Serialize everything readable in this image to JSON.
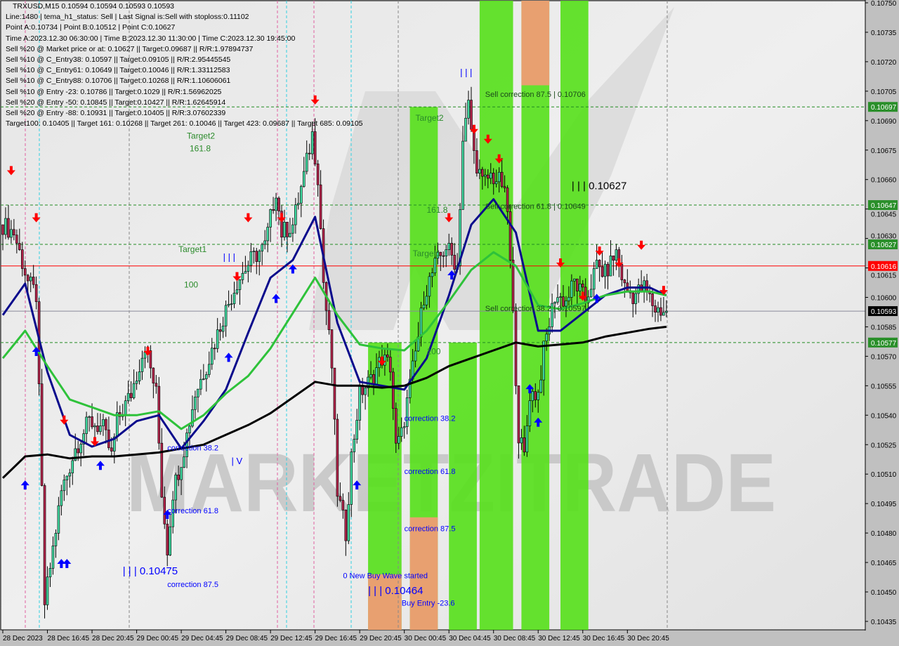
{
  "info": {
    "title": "TRXUSD,M15  0.10594 0.10594 0.10593 0.10593",
    "lines": [
      "Line:1480 | tema_h1_status: Sell | Last Signal is:Sell with stoploss:0.11102",
      "Point A:0.10734 | Point B:0.10512 | Point C:0.10627",
      "Time A:2023.12.30 06:30:00 | Time B:2023.12.30 11:30:00 | Time C:2023.12.30 19:45:00",
      "Sell %20 @ Market price or at: 0.10627 || Target:0.09687 || R/R:1.97894737",
      "Sell %10 @ C_Entry38: 0.10597 || Target:0.09105 || R/R:2.95445545",
      "Sell %10 @ C_Entry61: 0.10649 || Target:0.10046 || R/R:1.33112583",
      "Sell %10 @ C_Entry88: 0.10706 || Target:0.10268 || R/R:1.10606061",
      "Sell %10 @ Entry -23: 0.10786 || Target:0.1029 || R/R:1.56962025",
      "Sell %20 @ Entry -50: 0.10845 || Target:0.10427 || R/R:1.62645914",
      "Sell %20 @ Entry -88: 0.10931 || Target:0.10405 || R/R:3.07602339",
      "Target100: 0.10405 || Target 161: 0.10268 || Target 261: 0.10046 || Target 423: 0.09687 || Target 685: 0.09105"
    ]
  },
  "watermark": "MARKETZITRADE",
  "colors": {
    "bull": "#3fd9a0",
    "bear": "#b3234a",
    "fast_ma": "#0a0a8c",
    "mid_ma": "#2ec23a",
    "slow_ma": "#000000",
    "zone_green": "#55e01a",
    "zone_orange": "#e8a070",
    "level_green": "#228b22",
    "level_red": "#ff0000",
    "current": "#000000",
    "label_blue": "#0000ff"
  },
  "chart_data": {
    "type": "candlestick",
    "symbol": "TRXUSD",
    "timeframe": "M15",
    "ylim": [
      0.10428,
      0.10752
    ],
    "y_ticks": [
      "0.10750",
      "0.10735",
      "0.10720",
      "0.10705",
      "0.10690",
      "0.10675",
      "0.10660",
      "0.10645",
      "0.10630",
      "0.10615",
      "0.10600",
      "0.10585",
      "0.10570",
      "0.10555",
      "0.10540",
      "0.10525",
      "0.10510",
      "0.10495",
      "0.10480",
      "0.10465",
      "0.10450",
      "0.10435"
    ],
    "x_ticks": [
      {
        "t": "2023.12.28 12:45",
        "label": "28 Dec 2023"
      },
      {
        "t": "2023.12.28 16:45",
        "label": "28 Dec 16:45"
      },
      {
        "t": "2023.12.28 20:45",
        "label": "28 Dec 20:45"
      },
      {
        "t": "2023.12.29 00:45",
        "label": "29 Dec 00:45"
      },
      {
        "t": "2023.12.29 04:45",
        "label": "29 Dec 04:45"
      },
      {
        "t": "2023.12.29 08:45",
        "label": "29 Dec 08:45"
      },
      {
        "t": "2023.12.29 12:45",
        "label": "29 Dec 12:45"
      },
      {
        "t": "2023.12.29 16:45",
        "label": "29 Dec 16:45"
      },
      {
        "t": "2023.12.29 20:45",
        "label": "29 Dec 20:45"
      },
      {
        "t": "2023.12.30 00:45",
        "label": "30 Dec 00:45"
      },
      {
        "t": "2023.12.30 04:45",
        "label": "30 Dec 04:45"
      },
      {
        "t": "2023.12.30 08:45",
        "label": "30 Dec 08:45"
      },
      {
        "t": "2023.12.30 12:45",
        "label": "30 Dec 12:45"
      },
      {
        "t": "2023.12.30 16:45",
        "label": "30 Dec 16:45"
      },
      {
        "t": "2023.12.30 20:45",
        "label": "30 Dec 20:45"
      }
    ],
    "price_path": [
      [
        "2023.12.28 12:45",
        0.10637
      ],
      [
        "2023.12.28 13:45",
        0.10633
      ],
      [
        "2023.12.28 15:00",
        0.10608
      ],
      [
        "2023.12.28 15:45",
        0.10601
      ],
      [
        "2023.12.28 16:15",
        0.10501
      ],
      [
        "2023.12.28 16:30",
        0.10444
      ],
      [
        "2023.12.28 17:15",
        0.10472
      ],
      [
        "2023.12.28 18:00",
        0.10501
      ],
      [
        "2023.12.28 19:15",
        0.10523
      ],
      [
        "2023.12.28 20:30",
        0.10537
      ],
      [
        "2023.12.28 21:45",
        0.10533
      ],
      [
        "2023.12.28 22:30",
        0.10519
      ],
      [
        "2023.12.28 23:00",
        0.10537
      ],
      [
        "2023.12.29 00:15",
        0.10551
      ],
      [
        "2023.12.29 01:30",
        0.10576
      ],
      [
        "2023.12.29 02:30",
        0.10551
      ],
      [
        "2023.12.29 03:00",
        0.10501
      ],
      [
        "2023.12.29 03:30",
        0.10472
      ],
      [
        "2023.12.29 04:00",
        0.10501
      ],
      [
        "2023.12.29 05:00",
        0.10523
      ],
      [
        "2023.12.29 06:00",
        0.10551
      ],
      [
        "2023.12.29 07:15",
        0.10569
      ],
      [
        "2023.12.29 08:30",
        0.1059
      ],
      [
        "2023.12.29 09:45",
        0.10608
      ],
      [
        "2023.12.29 11:00",
        0.10619
      ],
      [
        "2023.12.29 12:15",
        0.10626
      ],
      [
        "2023.12.29 13:15",
        0.10655
      ],
      [
        "2023.12.29 13:45",
        0.10633
      ],
      [
        "2023.12.29 14:45",
        0.10637
      ],
      [
        "2023.12.29 15:45",
        0.10662
      ],
      [
        "2023.12.29 16:30",
        0.10683
      ],
      [
        "2023.12.29 17:00",
        0.10662
      ],
      [
        "2023.12.29 17:30",
        0.10608
      ],
      [
        "2023.12.29 18:15",
        0.10565
      ],
      [
        "2023.12.29 18:45",
        0.10501
      ],
      [
        "2023.12.29 19:30",
        0.1048
      ],
      [
        "2023.12.29 20:00",
        0.10519
      ],
      [
        "2023.12.29 20:45",
        0.10551
      ],
      [
        "2023.12.29 21:45",
        0.10558
      ],
      [
        "2023.12.29 22:45",
        0.10569
      ],
      [
        "2023.12.29 23:30",
        0.10565
      ],
      [
        "2023.12.30 00:00",
        0.10523
      ],
      [
        "2023.12.30 00:30",
        0.1053
      ],
      [
        "2023.12.30 01:15",
        0.10555
      ],
      [
        "2023.12.30 02:00",
        0.1058
      ],
      [
        "2023.12.30 02:30",
        0.10601
      ],
      [
        "2023.12.30 03:30",
        0.10616
      ],
      [
        "2023.12.30 04:30",
        0.10626
      ],
      [
        "2023.12.30 05:30",
        0.10616
      ],
      [
        "2023.12.30 06:00",
        0.1068
      ],
      [
        "2023.12.30 06:30",
        0.10698
      ],
      [
        "2023.12.30 07:00",
        0.10673
      ],
      [
        "2023.12.30 07:45",
        0.10658
      ],
      [
        "2023.12.30 08:30",
        0.10662
      ],
      [
        "2023.12.30 09:30",
        0.10658
      ],
      [
        "2023.12.30 10:00",
        0.10644
      ],
      [
        "2023.12.30 10:30",
        0.1059
      ],
      [
        "2023.12.30 11:00",
        0.1053
      ],
      [
        "2023.12.30 11:30",
        0.10519
      ],
      [
        "2023.12.30 12:00",
        0.10551
      ],
      [
        "2023.12.30 12:45",
        0.10551
      ],
      [
        "2023.12.30 13:15",
        0.10573
      ],
      [
        "2023.12.30 14:15",
        0.10601
      ],
      [
        "2023.12.30 15:15",
        0.10598
      ],
      [
        "2023.12.30 16:00",
        0.10608
      ],
      [
        "2023.12.30 17:00",
        0.10598
      ],
      [
        "2023.12.30 18:00",
        0.10616
      ],
      [
        "2023.12.30 18:45",
        0.10612
      ],
      [
        "2023.12.30 19:45",
        0.10623
      ],
      [
        "2023.12.30 20:30",
        0.10605
      ],
      [
        "2023.12.30 21:15",
        0.10601
      ],
      [
        "2023.12.30 22:15",
        0.10605
      ],
      [
        "2023.12.30 23:15",
        0.10594
      ],
      [
        "2023.12.31 00:15",
        0.10593
      ]
    ],
    "ma_times": [
      "2023.12.28 12:45",
      "2023.12.28 14:45",
      "2023.12.28 16:45",
      "2023.12.28 18:45",
      "2023.12.28 20:45",
      "2023.12.28 22:45",
      "2023.12.29 00:45",
      "2023.12.29 02:45",
      "2023.12.29 04:45",
      "2023.12.29 06:45",
      "2023.12.29 08:45",
      "2023.12.29 10:45",
      "2023.12.29 12:45",
      "2023.12.29 14:45",
      "2023.12.29 16:45",
      "2023.12.29 18:45",
      "2023.12.29 20:45",
      "2023.12.29 22:45",
      "2023.12.30 00:45",
      "2023.12.30 02:45",
      "2023.12.30 04:45",
      "2023.12.30 06:45",
      "2023.12.30 08:45",
      "2023.12.30 10:45",
      "2023.12.30 12:45",
      "2023.12.30 14:45",
      "2023.12.30 16:45",
      "2023.12.30 18:45",
      "2023.12.30 20:45",
      "2023.12.30 22:45",
      "2023.12.31 00:15"
    ],
    "series": [
      {
        "key": "fast_ma",
        "values": [
          0.10591,
          0.10607,
          0.10562,
          0.1053,
          0.10524,
          0.10528,
          0.10537,
          0.1054,
          0.10523,
          0.10537,
          0.10553,
          0.10582,
          0.1061,
          0.10619,
          0.10641,
          0.10587,
          0.10557,
          0.10555,
          0.10553,
          0.10569,
          0.10601,
          0.10637,
          0.1065,
          0.10633,
          0.10583,
          0.10583,
          0.10592,
          0.10601,
          0.10605,
          0.10605,
          0.10601
        ]
      },
      {
        "key": "mid_ma",
        "values": [
          0.10569,
          0.10583,
          0.10565,
          0.10548,
          0.10544,
          0.1054,
          0.1054,
          0.10542,
          0.10533,
          0.1054,
          0.10551,
          0.1056,
          0.10574,
          0.10592,
          0.1061,
          0.10591,
          0.10576,
          0.10574,
          0.10573,
          0.10583,
          0.10598,
          0.10614,
          0.10623,
          0.10616,
          0.10596,
          0.10594,
          0.10597,
          0.10601,
          0.10603,
          0.10603,
          0.10601
        ]
      },
      {
        "key": "slow_ma",
        "values": [
          0.10508,
          0.10519,
          0.1052,
          0.10518,
          0.10519,
          0.10519,
          0.1052,
          0.10521,
          0.10523,
          0.10525,
          0.1053,
          0.10535,
          0.10541,
          0.10549,
          0.10557,
          0.10555,
          0.10555,
          0.10554,
          0.10555,
          0.10559,
          0.10565,
          0.10569,
          0.10573,
          0.10577,
          0.10575,
          0.10576,
          0.10577,
          0.1058,
          0.10582,
          0.10584,
          0.10585
        ]
      }
    ],
    "levels": [
      {
        "price": 0.10697,
        "label": "0.10697",
        "style": "dashed",
        "color": "#228b22"
      },
      {
        "price": 0.10647,
        "label": "0.10647",
        "style": "dashed",
        "color": "#228b22"
      },
      {
        "price": 0.10627,
        "label": "0.10627",
        "style": "dashed",
        "color": "#228b22"
      },
      {
        "price": 0.10616,
        "label": "0.10616",
        "style": "solid",
        "color": "#ff0000"
      },
      {
        "price": 0.10593,
        "label": "0.10593",
        "style": "solid",
        "color": "#000000"
      },
      {
        "price": 0.10577,
        "label": "0.10577",
        "style": "dashed",
        "color": "#228b22"
      }
    ],
    "zones": [
      {
        "from": "2023.12.29 21:30",
        "to": "2023.12.30 00:30",
        "top": 0.10577,
        "bottom": 0.10428,
        "color": "green",
        "orange_top": 0.10459
      },
      {
        "from": "2023.12.30 01:15",
        "to": "2023.12.30 03:45",
        "top": 0.10697,
        "bottom": 0.10428,
        "color": "green",
        "orange_top": 0.10488
      },
      {
        "from": "2023.12.30 04:45",
        "to": "2023.12.30 07:15",
        "top": 0.10577,
        "bottom": 0.10428,
        "color": "green"
      },
      {
        "from": "2023.12.30 07:30",
        "to": "2023.12.30 10:30",
        "top": 0.10752,
        "bottom": 0.10428,
        "color": "green"
      },
      {
        "from": "2023.12.30 11:15",
        "to": "2023.12.30 13:45",
        "top": 0.10752,
        "bottom": 0.10428,
        "color": "green",
        "orange_band": [
          0.10752,
          0.10708
        ]
      },
      {
        "from": "2023.12.30 14:45",
        "to": "2023.12.30 17:15",
        "top": 0.10752,
        "bottom": 0.10428,
        "color": "green"
      }
    ],
    "annotations": [
      {
        "text": "Target2",
        "t": "2023.12.30 01:45",
        "p": 0.1069,
        "color": "#2a8a2a",
        "size": 12
      },
      {
        "text": "Target2",
        "t": "2023.12.29 05:15",
        "p": 0.10718,
        "color": "#2a8a2a",
        "size": 12
      },
      {
        "text": "161.8",
        "t": "2023.12.29 05:30",
        "p": 0.10693,
        "color": "#2a8a2a",
        "size": 12
      },
      {
        "text": "161.8",
        "t": "2023.12.30 02:45",
        "p": 0.10643,
        "color": "#2a8a2a",
        "size": 12
      },
      {
        "text": "Target1",
        "t": "2023.12.29 04:30",
        "p": 0.10623,
        "color": "#2a8a2a",
        "size": 12
      },
      {
        "text": "Target1",
        "t": "2023.12.30 01:30",
        "p": 0.10621,
        "color": "#2a8a2a",
        "size": 12
      },
      {
        "text": "100",
        "t": "2023.12.29 05:00",
        "p": 0.10605,
        "color": "#2a8a2a",
        "size": 12
      },
      {
        "text": "100",
        "t": "2023.12.30 02:45",
        "p": 0.10571,
        "color": "#2a8a2a",
        "size": 12
      },
      {
        "text": "Sell correction 87.5 | 0.10706",
        "t": "2023.12.30 08:00",
        "p": 0.10702,
        "color": "#1a4a1a",
        "size": 11
      },
      {
        "text": "Sell correction 61.8 | 0.10649",
        "t": "2023.12.30 08:00",
        "p": 0.10645,
        "color": "#1a4a1a",
        "size": 11
      },
      {
        "text": "Sell correction 38.2 | 0.10597",
        "t": "2023.12.30 08:00",
        "p": 0.10593,
        "color": "#1a4a1a",
        "size": 11
      },
      {
        "text": "| | | 0.10627",
        "t": "2023.12.30 15:45",
        "p": 0.10655,
        "color": "#000000",
        "size": 15
      },
      {
        "text": "| | | 0.10475",
        "t": "2023.12.28 23:30",
        "p": 0.10459,
        "color": "#0000ff",
        "size": 15
      },
      {
        "text": "| | | 0.10464",
        "t": "2023.12.29 21:30",
        "p": 0.10449,
        "color": "#0000ff",
        "size": 15
      },
      {
        "text": "| | |",
        "t": "2023.12.29 08:30",
        "p": 0.10619,
        "color": "#0000ff",
        "size": 13
      },
      {
        "text": "| | |",
        "t": "2023.12.30 05:45",
        "p": 0.10713,
        "color": "#0000ff",
        "size": 13
      },
      {
        "text": "| V",
        "t": "2023.12.29 09:15",
        "p": 0.10515,
        "color": "#0000ff",
        "size": 13
      },
      {
        "text": "correction 38.2",
        "t": "2023.12.29 03:30",
        "p": 0.10522,
        "color": "#0000ff",
        "size": 11
      },
      {
        "text": "correction 61.8",
        "t": "2023.12.29 03:30",
        "p": 0.1049,
        "color": "#0000ff",
        "size": 11
      },
      {
        "text": "correction 87.5",
        "t": "2023.12.29 03:30",
        "p": 0.10454,
        "color": "#0000ff",
        "size": 11
      },
      {
        "text": "correction 38.2",
        "t": "2023.12.30 00:45",
        "p": 0.10537,
        "color": "#0000ff",
        "size": 11
      },
      {
        "text": "correction 61.8",
        "t": "2023.12.30 00:45",
        "p": 0.1051,
        "color": "#0000ff",
        "size": 11
      },
      {
        "text": "correction 87.5",
        "t": "2023.12.30 00:45",
        "p": 0.10481,
        "color": "#0000ff",
        "size": 11
      },
      {
        "text": "0 New Buy Wave started",
        "t": "2023.12.29 19:15",
        "p": 0.10457,
        "color": "#0000ff",
        "size": 11
      },
      {
        "text": "Buy Entry -23.6",
        "t": "2023.12.30 00:30",
        "p": 0.10443,
        "color": "#0000ff",
        "size": 11
      }
    ],
    "sell_arrows": [
      [
        "2023.12.28 13:30",
        0.10664
      ],
      [
        "2023.12.28 15:45",
        0.1064
      ],
      [
        "2023.12.28 18:15",
        0.10537
      ],
      [
        "2023.12.28 21:00",
        0.10526
      ],
      [
        "2023.12.29 01:45",
        0.10572
      ],
      [
        "2023.12.29 09:45",
        0.1061
      ],
      [
        "2023.12.29 10:45",
        0.1064
      ],
      [
        "2023.12.29 13:45",
        0.1064
      ],
      [
        "2023.12.29 16:45",
        0.107
      ],
      [
        "2023.12.29 22:45",
        0.10567
      ],
      [
        "2023.12.30 04:45",
        0.1064
      ],
      [
        "2023.12.30 07:00",
        0.10685
      ],
      [
        "2023.12.30 08:15",
        0.1068
      ],
      [
        "2023.12.30 09:15",
        0.1067
      ],
      [
        "2023.12.30 14:45",
        0.10617
      ],
      [
        "2023.12.30 16:45",
        0.106
      ],
      [
        "2023.12.30 18:15",
        0.10623
      ],
      [
        "2023.12.30 20:00",
        0.10617
      ],
      [
        "2023.12.30 22:00",
        0.10626
      ],
      [
        "2023.12.31 00:00",
        0.10603
      ]
    ],
    "buy_arrows": [
      [
        "2023.12.28 14:45",
        0.10505
      ],
      [
        "2023.12.28 15:45",
        0.10573
      ],
      [
        "2023.12.28 18:00",
        0.10465
      ],
      [
        "2023.12.28 18:30",
        0.10465
      ],
      [
        "2023.12.28 21:30",
        0.10515
      ],
      [
        "2023.12.29 03:30",
        0.1049
      ],
      [
        "2023.12.29 09:00",
        0.1057
      ],
      [
        "2023.12.29 13:15",
        0.106
      ],
      [
        "2023.12.29 14:45",
        0.10615
      ],
      [
        "2023.12.29 20:30",
        0.10505
      ],
      [
        "2023.12.30 05:00",
        0.10612
      ],
      [
        "2023.12.30 12:00",
        0.10554
      ],
      [
        "2023.12.30 12:45",
        0.10537
      ],
      [
        "2023.12.30 18:00",
        0.106
      ]
    ]
  }
}
